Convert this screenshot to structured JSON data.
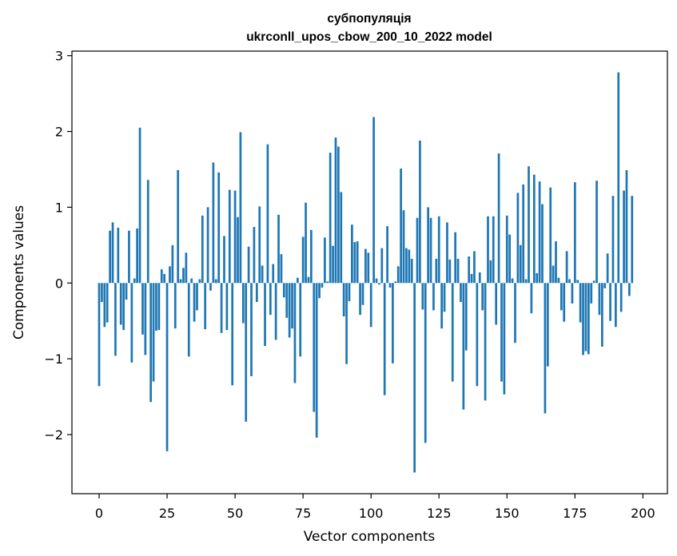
{
  "chart_data": {
    "type": "bar",
    "title": "субпопуляція",
    "subtitle": "ukrconll_upos_cbow_200_10_2022 model",
    "xlabel": "Vector components",
    "ylabel": "Components values",
    "xlim": [
      -10,
      209
    ],
    "ylim": [
      -2.78,
      3.06
    ],
    "xticks": [
      0,
      25,
      50,
      75,
      100,
      125,
      150,
      175,
      200
    ],
    "yticks": [
      -2,
      -1,
      0,
      1,
      2,
      3
    ],
    "ytick_labels": [
      "−2",
      "−1",
      "0",
      "1",
      "2",
      "3"
    ],
    "grid": false,
    "color": "#1f77b4",
    "values": [
      -1.36,
      -0.25,
      -0.58,
      -0.52,
      0.69,
      0.8,
      -0.96,
      0.73,
      -0.55,
      -0.62,
      -0.22,
      0.69,
      -1.05,
      0.06,
      0.72,
      2.05,
      -0.68,
      -0.95,
      1.36,
      -1.57,
      -1.3,
      -0.63,
      -0.62,
      0.18,
      0.12,
      -2.22,
      0.22,
      0.5,
      -0.6,
      1.49,
      0.05,
      0.2,
      0.4,
      -0.97,
      0.06,
      -0.51,
      -0.36,
      0.05,
      0.89,
      -0.61,
      1.0,
      -0.1,
      1.59,
      0.05,
      1.46,
      -0.66,
      0.62,
      -0.62,
      1.23,
      -1.35,
      1.22,
      0.87,
      1.99,
      -0.53,
      -1.83,
      0.48,
      -1.23,
      0.74,
      -0.25,
      1.01,
      0.23,
      -0.83,
      1.83,
      -0.42,
      0.25,
      -0.75,
      0.9,
      0.38,
      -0.19,
      -0.46,
      -0.72,
      -0.6,
      -1.32,
      0.07,
      -0.97,
      0.61,
      1.06,
      0.08,
      0.7,
      -1.7,
      -2.04,
      -0.2,
      -0.06,
      0.6,
      0.02,
      1.72,
      0.49,
      1.92,
      1.8,
      1.2,
      -0.44,
      -1.07,
      -0.24,
      0.77,
      0.54,
      0.55,
      -0.42,
      -0.29,
      0.45,
      0.4,
      -0.58,
      2.19,
      0.06,
      -0.02,
      0.46,
      -1.48,
      0.75,
      -0.06,
      -1.06,
      0.02,
      0.22,
      1.51,
      0.96,
      0.46,
      0.44,
      0.32,
      -2.5,
      0.86,
      1.88,
      -0.35,
      -2.11,
      1.0,
      0.86,
      -0.36,
      0.32,
      0.88,
      -0.6,
      -0.38,
      0.8,
      0.31,
      -1.3,
      0.67,
      0.32,
      -0.25,
      -1.67,
      -0.89,
      0.35,
      0.12,
      0.42,
      -1.36,
      0.14,
      -0.36,
      -1.55,
      0.88,
      0.3,
      0.88,
      -0.55,
      1.71,
      -1.3,
      -1.47,
      0.89,
      0.64,
      0.06,
      -0.79,
      1.19,
      0.5,
      1.3,
      0.05,
      1.54,
      -0.4,
      1.43,
      0.13,
      1.34,
      1.04,
      -1.72,
      -1.1,
      1.26,
      0.23,
      0.55,
      0.07,
      -0.36,
      -0.51,
      0.42,
      0.05,
      -0.27,
      1.33,
      0.04,
      -0.52,
      -0.95,
      -0.9,
      -0.94,
      -0.27,
      0.03,
      1.35,
      -0.42,
      -0.84,
      -0.07,
      0.39,
      -0.5,
      1.15,
      -0.58,
      2.78,
      -0.38,
      1.22,
      1.49,
      -0.17,
      1.15
    ]
  }
}
